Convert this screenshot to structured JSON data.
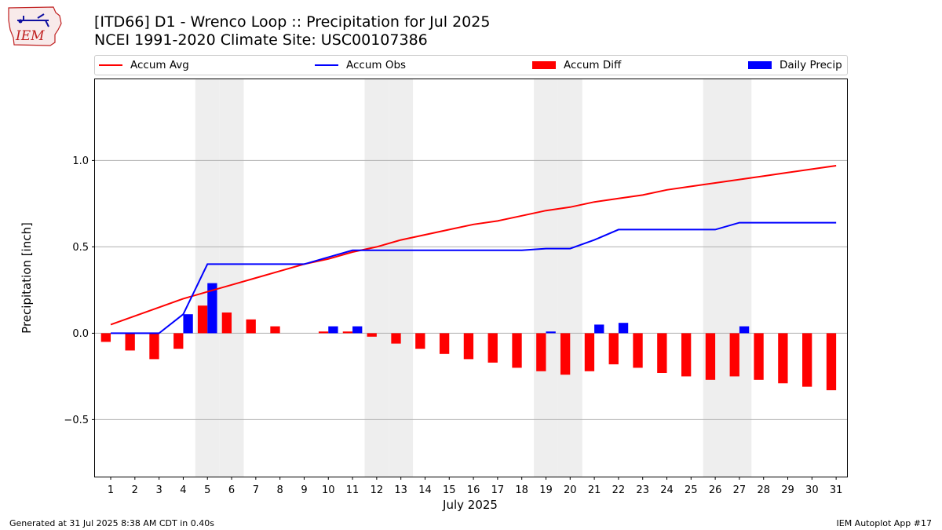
{
  "header": {
    "title_line1": "[ITD66] D1 - Wrenco Loop  :: Precipitation for Jul 2025",
    "title_line2": "NCEI 1991-2020 Climate Site: USC00107386"
  },
  "logo": {
    "text": "IEM",
    "icon": "iowa-state-outline-logo"
  },
  "legend": [
    {
      "label": "Accum Avg",
      "color": "#ff0000",
      "kind": "line"
    },
    {
      "label": "Accum Obs",
      "color": "#0000ff",
      "kind": "line"
    },
    {
      "label": "Accum Diff",
      "color": "#ff0000",
      "kind": "bar"
    },
    {
      "label": "Daily Precip",
      "color": "#0000ff",
      "kind": "bar"
    }
  ],
  "chart_data": {
    "type": "bar",
    "title": "[ITD66] D1 - Wrenco Loop  :: Precipitation for Jul 2025",
    "subtitle": "NCEI 1991-2020 Climate Site: USC00107386",
    "xlabel": "July 2025",
    "ylabel": "Precipitation [inch]",
    "ylim": [
      -0.83,
      1.47
    ],
    "yticks": [
      -0.5,
      0.0,
      0.5,
      1.0
    ],
    "ytick_labels": [
      "−0.5",
      "0.0",
      "0.5",
      "1.0"
    ],
    "x": [
      1,
      2,
      3,
      4,
      5,
      6,
      7,
      8,
      9,
      10,
      11,
      12,
      13,
      14,
      15,
      16,
      17,
      18,
      19,
      20,
      21,
      22,
      23,
      24,
      25,
      26,
      27,
      28,
      29,
      30,
      31
    ],
    "grid": "horizontal",
    "legend_position": "top",
    "weekend_days_shaded": [
      5,
      6,
      12,
      13,
      19,
      20,
      26,
      27
    ],
    "series": [
      {
        "name": "Accum Avg",
        "type": "line",
        "color": "#ff0000",
        "values": [
          0.05,
          0.1,
          0.15,
          0.2,
          0.24,
          0.28,
          0.32,
          0.36,
          0.4,
          0.43,
          0.47,
          0.5,
          0.54,
          0.57,
          0.6,
          0.63,
          0.65,
          0.68,
          0.71,
          0.73,
          0.76,
          0.78,
          0.8,
          0.83,
          0.85,
          0.87,
          0.89,
          0.91,
          0.93,
          0.95,
          0.97
        ]
      },
      {
        "name": "Accum Obs",
        "type": "line",
        "color": "#0000ff",
        "values": [
          0.0,
          0.0,
          0.0,
          0.11,
          0.4,
          0.4,
          0.4,
          0.4,
          0.4,
          0.44,
          0.48,
          0.48,
          0.48,
          0.48,
          0.48,
          0.48,
          0.48,
          0.48,
          0.49,
          0.49,
          0.54,
          0.6,
          0.6,
          0.6,
          0.6,
          0.6,
          0.64,
          0.64,
          0.64,
          0.64,
          0.64
        ]
      },
      {
        "name": "Accum Diff",
        "type": "bar",
        "color": "#ff0000",
        "values": [
          -0.05,
          -0.1,
          -0.15,
          -0.09,
          0.16,
          0.12,
          0.08,
          0.04,
          0.0,
          0.01,
          0.01,
          -0.02,
          -0.06,
          -0.09,
          -0.12,
          -0.15,
          -0.17,
          -0.2,
          -0.22,
          -0.24,
          -0.22,
          -0.18,
          -0.2,
          -0.23,
          -0.25,
          -0.27,
          -0.25,
          -0.27,
          -0.29,
          -0.31,
          -0.33
        ]
      },
      {
        "name": "Daily Precip",
        "type": "bar",
        "color": "#0000ff",
        "values": [
          0.0,
          0.0,
          0.0,
          0.11,
          0.29,
          0.0,
          0.0,
          0.0,
          0.0,
          0.04,
          0.04,
          0.0,
          0.0,
          0.0,
          0.0,
          0.0,
          0.0,
          0.0,
          0.01,
          0.0,
          0.05,
          0.06,
          0.0,
          0.0,
          0.0,
          0.0,
          0.04,
          0.0,
          0.0,
          0.0,
          0.0
        ]
      }
    ]
  },
  "footer": {
    "generated": "Generated at 31 Jul 2025 8:38 AM CDT in 0.40s",
    "app": "IEM Autoplot App #17"
  }
}
